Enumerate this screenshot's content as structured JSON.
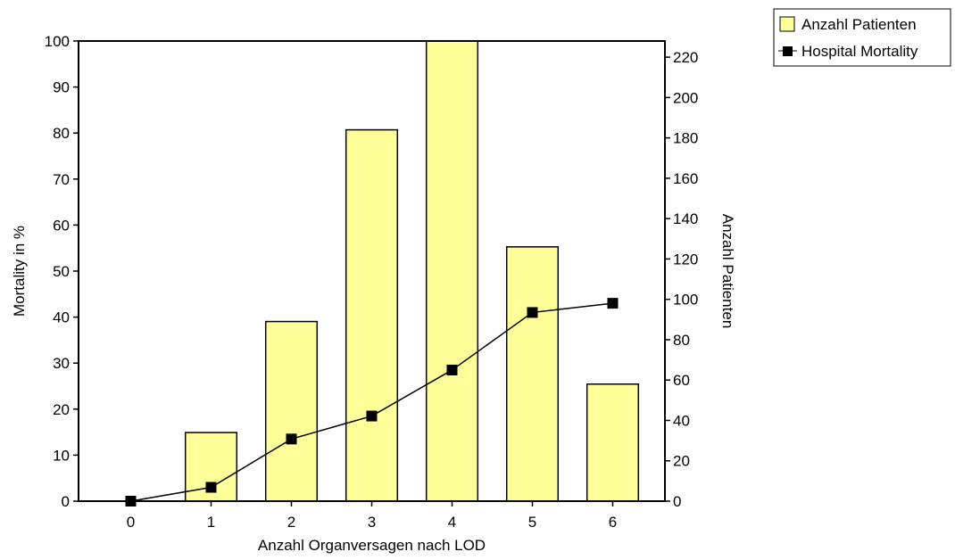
{
  "chart_data": {
    "type": "bar",
    "categories": [
      "0",
      "1",
      "2",
      "3",
      "4",
      "5",
      "6"
    ],
    "xlabel": "Anzahl Organversagen nach LOD",
    "ylabel_left": "Mortality in %",
    "ylabel_right": "Anzahl Patienten",
    "ylim_left": [
      0,
      100
    ],
    "ylim_right": [
      0,
      228
    ],
    "yticks_left": [
      0,
      10,
      20,
      30,
      40,
      50,
      60,
      70,
      80,
      90,
      100
    ],
    "yticks_right": [
      0,
      20,
      40,
      60,
      80,
      100,
      120,
      140,
      160,
      180,
      200,
      220
    ],
    "grid": false,
    "legend_position": "top-right",
    "series": [
      {
        "name": "Anzahl Patienten",
        "type": "bar",
        "axis": "right",
        "color": "#ffff99",
        "values": [
          0,
          34,
          89,
          184,
          228,
          126,
          58
        ]
      },
      {
        "name": "Hospital Mortality",
        "type": "line",
        "axis": "left",
        "color": "#000000",
        "values": [
          0,
          3,
          13.5,
          18.5,
          28.5,
          41,
          43
        ]
      }
    ]
  }
}
